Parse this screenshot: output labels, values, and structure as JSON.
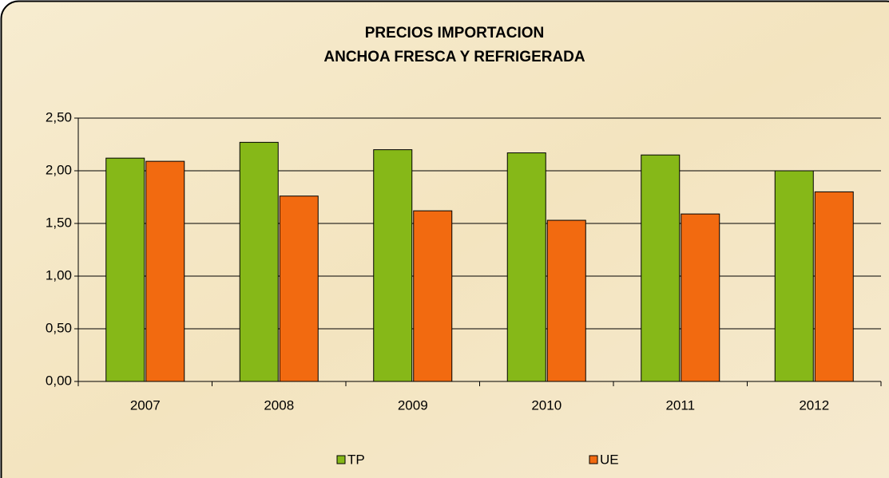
{
  "chart_data": {
    "type": "bar",
    "title": "PRECIOS IMPORTACION",
    "subtitle": "ANCHOA FRESCA Y REFRIGERADA",
    "categories": [
      "2007",
      "2008",
      "2009",
      "2010",
      "2011",
      "2012"
    ],
    "series": [
      {
        "name": "TP",
        "color": "#86b818",
        "values": [
          2.12,
          2.27,
          2.2,
          2.17,
          2.15,
          2.0
        ]
      },
      {
        "name": "UE",
        "color": "#f26a10",
        "values": [
          2.09,
          1.76,
          1.62,
          1.53,
          1.59,
          1.8
        ]
      }
    ],
    "ylim": [
      0,
      2.5
    ],
    "yticks": [
      {
        "value": 0,
        "label": "0,00"
      },
      {
        "value": 0.5,
        "label": "0,50"
      },
      {
        "value": 1,
        "label": "1,00"
      },
      {
        "value": 1.5,
        "label": "1,50"
      },
      {
        "value": 2,
        "label": "2,00"
      },
      {
        "value": 2.5,
        "label": "2,50"
      }
    ],
    "grid": true,
    "legend": "bottom"
  }
}
